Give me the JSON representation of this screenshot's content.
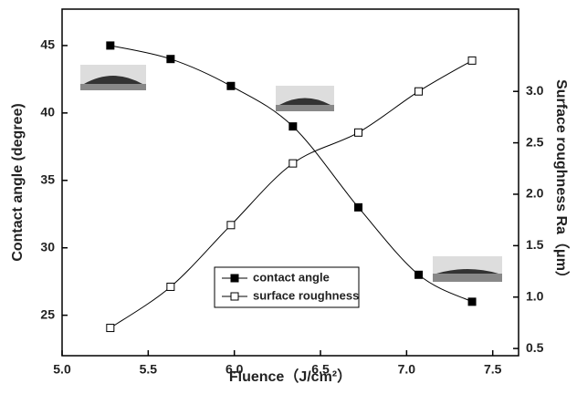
{
  "chart_data": {
    "type": "line",
    "x_label": "Fluence（J/cm²）",
    "y_label": "Contact angle (degree)",
    "y2_label": "Surface roughness  Ra（μm）",
    "x": [
      5.28,
      5.63,
      5.98,
      6.34,
      6.72,
      7.07,
      7.38
    ],
    "series": [
      {
        "name": "contact angle",
        "color": "#000000",
        "marker": "filled-square",
        "values": [
          45,
          44,
          42,
          39,
          33,
          28,
          26
        ]
      },
      {
        "name": "surface roughness",
        "color": "#000000",
        "marker": "open-square",
        "axis": "y2",
        "values": [
          0.7,
          1.1,
          1.7,
          2.3,
          2.6,
          3.0,
          3.3
        ]
      }
    ],
    "xlim": [
      5.0,
      7.65
    ],
    "xticks": [
      {
        "value": 5.0,
        "label": "5.0"
      },
      5.5,
      {
        "value": 6.0,
        "label": "6.0"
      },
      6.5,
      {
        "value": 7.0,
        "label": "7.0"
      },
      7.5
    ],
    "ylim": [
      22,
      47.7
    ],
    "yticks": [
      25,
      30,
      35,
      40,
      45
    ],
    "y2lim": [
      0.43,
      3.8
    ],
    "y2ticks": [
      0.5,
      {
        "value": 1.0,
        "label": "1.0"
      },
      1.5,
      {
        "value": 2.0,
        "label": "2.0"
      },
      2.5,
      {
        "value": 3.0,
        "label": "3.0"
      }
    ],
    "legend": "lower-center"
  }
}
